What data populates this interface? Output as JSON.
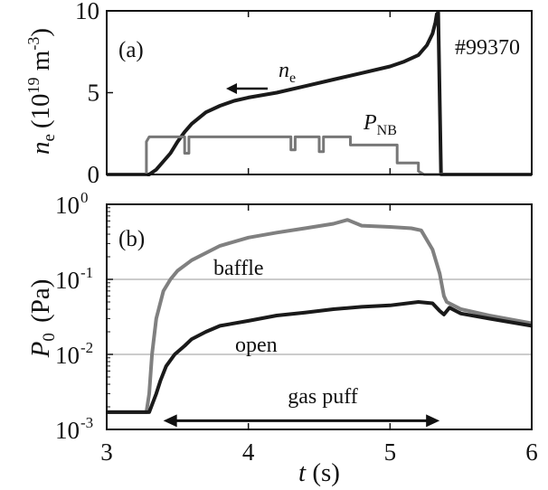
{
  "chart_data": [
    {
      "panel": "(a)",
      "type": "line",
      "shot_label": "#99370",
      "xlim": [
        3,
        6
      ],
      "ylim": [
        0,
        10
      ],
      "x_ticks": [
        "3",
        "4",
        "5",
        "6"
      ],
      "y_ticks": [
        "0",
        "5",
        "10"
      ],
      "ylabel": {
        "symbol": "n",
        "subscript": "e",
        "unit_prefix": "(10",
        "exp1": "19",
        "unit_mid": " m",
        "exp2": "-3",
        "unit_suffix": ")"
      },
      "series": [
        {
          "name": "n",
          "name_sub": "e",
          "color": "#1a1a1a",
          "x": [
            3.0,
            3.3,
            3.35,
            3.4,
            3.45,
            3.5,
            3.55,
            3.6,
            3.7,
            3.8,
            3.9,
            4.0,
            4.2,
            4.4,
            4.6,
            4.8,
            5.0,
            5.1,
            5.2,
            5.26,
            5.3,
            5.32,
            5.33,
            5.34,
            5.36,
            6.0
          ],
          "y": [
            0.0,
            0.0,
            0.3,
            0.8,
            1.3,
            2.0,
            2.6,
            3.1,
            3.8,
            4.2,
            4.5,
            4.7,
            5.0,
            5.4,
            5.8,
            6.2,
            6.6,
            6.9,
            7.3,
            7.9,
            8.6,
            9.3,
            9.8,
            9.9,
            0.0,
            0.0
          ]
        },
        {
          "name": "P",
          "name_sub": "NB",
          "color": "#777777",
          "x": [
            3.0,
            3.28,
            3.28,
            3.3,
            3.55,
            3.55,
            3.58,
            3.58,
            4.3,
            4.3,
            4.33,
            4.33,
            4.5,
            4.5,
            4.53,
            4.53,
            4.72,
            4.72,
            5.05,
            5.05,
            5.2,
            5.2,
            5.24,
            6.0
          ],
          "y": [
            0.0,
            0.0,
            2.0,
            2.3,
            2.3,
            1.3,
            1.3,
            2.3,
            2.3,
            1.5,
            1.5,
            2.3,
            2.3,
            1.4,
            1.4,
            2.3,
            2.3,
            1.8,
            1.8,
            0.7,
            0.7,
            0.2,
            0.0,
            0.0
          ]
        }
      ],
      "arrow_direction": "left"
    },
    {
      "panel": "(b)",
      "type": "line",
      "yscale": "log",
      "xlim": [
        3,
        6
      ],
      "ylim": [
        0.001,
        1
      ],
      "x_ticks": [
        "3",
        "4",
        "5",
        "6"
      ],
      "y_ticks": [
        {
          "base": "10",
          "exp": "-3"
        },
        {
          "base": "10",
          "exp": "-2"
        },
        {
          "base": "10",
          "exp": "-1"
        },
        {
          "base": "10",
          "exp": "0"
        }
      ],
      "gridlines_y": [
        0.01,
        0.1
      ],
      "xlabel": {
        "symbol": "t",
        "unit": " (s)"
      },
      "ylabel": {
        "symbol": "P",
        "subscript": "0",
        "unit": " (Pa)"
      },
      "series": [
        {
          "name": "baffle",
          "color": "#808080",
          "x": [
            3.0,
            3.28,
            3.3,
            3.32,
            3.35,
            3.4,
            3.45,
            3.5,
            3.6,
            3.8,
            4.0,
            4.2,
            4.4,
            4.6,
            4.7,
            4.8,
            5.0,
            5.15,
            5.22,
            5.3,
            5.35,
            5.38,
            5.4,
            5.5,
            5.7,
            6.0
          ],
          "y": [
            0.0017,
            0.0017,
            0.003,
            0.01,
            0.03,
            0.07,
            0.1,
            0.13,
            0.18,
            0.28,
            0.36,
            0.42,
            0.48,
            0.55,
            0.62,
            0.52,
            0.5,
            0.48,
            0.45,
            0.25,
            0.12,
            0.06,
            0.05,
            0.04,
            0.033,
            0.026
          ]
        },
        {
          "name": "open",
          "color": "#1a1a1a",
          "x": [
            3.0,
            3.3,
            3.35,
            3.38,
            3.42,
            3.48,
            3.55,
            3.6,
            3.7,
            3.8,
            4.0,
            4.2,
            4.4,
            4.6,
            4.8,
            5.0,
            5.2,
            5.3,
            5.35,
            5.38,
            5.42,
            5.5,
            5.7,
            6.0
          ],
          "y": [
            0.0017,
            0.0017,
            0.003,
            0.0045,
            0.007,
            0.01,
            0.013,
            0.016,
            0.02,
            0.024,
            0.028,
            0.033,
            0.036,
            0.04,
            0.043,
            0.045,
            0.05,
            0.048,
            0.038,
            0.034,
            0.042,
            0.035,
            0.03,
            0.024
          ]
        }
      ],
      "annotation": {
        "text": "gas puff",
        "x_start": 3.4,
        "x_end": 5.35,
        "y": 0.0015
      }
    }
  ]
}
